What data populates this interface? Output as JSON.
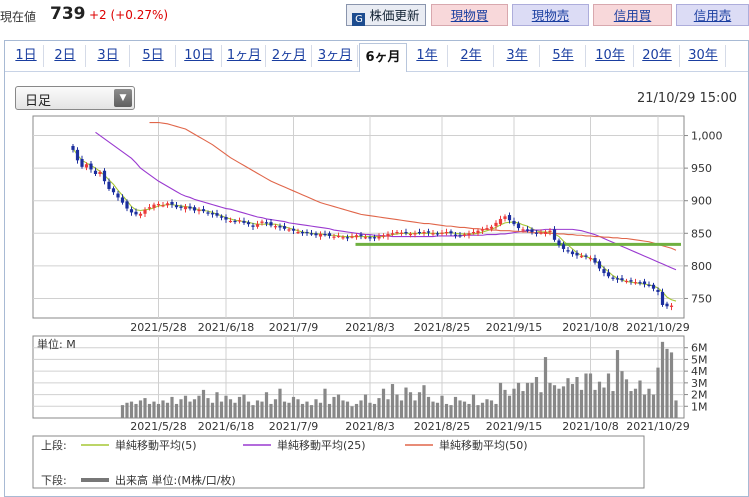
{
  "header": {
    "price_label": "現在値",
    "price": "739",
    "change": "+2 (+0.27%)",
    "refresh_label": "株価更新",
    "buy_cash_label": "現物買",
    "sell_cash_label": "現物売",
    "buy_margin_label": "信用買",
    "sell_margin_label": "信用売"
  },
  "tabs": [
    "1日",
    "2日",
    "3日",
    "5日",
    "10日",
    "1ヶ月",
    "2ヶ月",
    "3ヶ月",
    "6ヶ月",
    "1年",
    "2年",
    "3年",
    "5年",
    "10年",
    "20年",
    "30年"
  ],
  "active_tab": "6ヶ月",
  "period_select": {
    "value": "日足"
  },
  "datetime": "21/10/29 15:00",
  "colors": {
    "up": "#ec3b3b",
    "down": "#1c2f9e",
    "ma5": "#a6c735",
    "ma25": "#9a3ad0",
    "ma50": "#e0664a",
    "support": "#6fb040",
    "volume": "#888888"
  },
  "chart_data": [
    {
      "type": "candlestick",
      "title": "",
      "ylabel": "",
      "ylim": [
        720,
        1030
      ],
      "y_ticks": [
        "1,000",
        "950",
        "900",
        "850",
        "800",
        "750"
      ],
      "y_tick_values": [
        1000,
        950,
        900,
        850,
        800,
        750
      ],
      "x_ticks": [
        "2021/5/28",
        "2021/6/18",
        "2021/7/9",
        "2021/8/3",
        "2021/8/25",
        "2021/9/15",
        "2021/10/8",
        "2021/10/29"
      ],
      "x_tick_index": [
        19,
        34,
        49,
        66,
        82,
        98,
        115,
        130
      ],
      "support_line": {
        "value": 833,
        "from_index": 65,
        "to_index": 135
      },
      "close": [
        978,
        962,
        952,
        956,
        948,
        941,
        944,
        930,
        918,
        913,
        905,
        897,
        888,
        882,
        879,
        880,
        886,
        890,
        894,
        895,
        893,
        896,
        894,
        890,
        889,
        891,
        888,
        885,
        886,
        884,
        881,
        879,
        877,
        874,
        871,
        869,
        868,
        870,
        866,
        864,
        860,
        864,
        868,
        866,
        862,
        861,
        859,
        857,
        856,
        854,
        852,
        850,
        851,
        849,
        847,
        849,
        848,
        846,
        845,
        846,
        844,
        843,
        845,
        847,
        846,
        844,
        842,
        843,
        845,
        847,
        849,
        850,
        852,
        851,
        850,
        849,
        850,
        851,
        852,
        851,
        850,
        849,
        851,
        852,
        850,
        847,
        846,
        848,
        850,
        852,
        854,
        856,
        858,
        860,
        866,
        872,
        876,
        870,
        864,
        858,
        856,
        854,
        852,
        850,
        851,
        852,
        854,
        840,
        832,
        826,
        822,
        818,
        816,
        815,
        814,
        812,
        805,
        796,
        789,
        784,
        781,
        779,
        778,
        777,
        776,
        775,
        774,
        772,
        770,
        765,
        760,
        740,
        738,
        739
      ],
      "series": [
        {
          "name": "単純移動平均(5)",
          "values": [
            980,
            970,
            962,
            958,
            954,
            950,
            945,
            939,
            932,
            925,
            916,
            908,
            900,
            891,
            886,
            885,
            886,
            887,
            889,
            892,
            893,
            894,
            894,
            893,
            892,
            891,
            890,
            888,
            886,
            885,
            884,
            882,
            879,
            877,
            874,
            872,
            870,
            869,
            868,
            867,
            865,
            864,
            864,
            864,
            864,
            864,
            862,
            860,
            858,
            856,
            854,
            852,
            851,
            850,
            849,
            849,
            848,
            847,
            847,
            846,
            845,
            845,
            845,
            845,
            845,
            845,
            845,
            845,
            845,
            845,
            846,
            848,
            849,
            850,
            850,
            850,
            850,
            850,
            850,
            850,
            850,
            850,
            850,
            851,
            851,
            850,
            849,
            849,
            849,
            849,
            850,
            852,
            854,
            856,
            859,
            863,
            866,
            867,
            867,
            866,
            863,
            861,
            857,
            854,
            852,
            852,
            851,
            849,
            845,
            838,
            832,
            826,
            820,
            816,
            814,
            812,
            808,
            803,
            797,
            791,
            785,
            781,
            778,
            776,
            775,
            774,
            773,
            772,
            771,
            769,
            766,
            760,
            752,
            748,
            746
          ]
        },
        {
          "name": "単純移動平均(25)",
          "values": [
            1005,
            1000,
            995,
            990,
            985,
            980,
            975,
            970,
            965,
            958,
            950,
            945,
            940,
            935,
            930,
            926,
            922,
            918,
            914,
            910,
            907,
            905,
            902,
            900,
            898,
            896,
            894,
            892,
            890,
            888,
            887,
            885,
            883,
            881,
            879,
            877,
            875,
            874,
            872,
            871,
            870,
            869,
            868,
            866,
            865,
            864,
            863,
            862,
            861,
            860,
            859,
            858,
            857,
            855,
            854,
            853,
            852,
            851,
            850,
            849,
            848,
            848,
            847,
            847,
            846,
            846,
            845,
            845,
            845,
            845,
            845,
            845,
            845,
            845,
            845,
            845,
            846,
            846,
            846,
            846,
            846,
            846,
            847,
            847,
            847,
            847,
            847,
            848,
            848,
            848,
            849,
            849,
            850,
            851,
            852,
            853,
            854,
            855,
            855,
            855,
            856,
            856,
            856,
            856,
            856,
            856,
            856,
            855,
            854,
            852,
            850,
            848,
            845,
            842,
            839,
            836,
            833,
            830,
            827,
            824,
            821,
            818,
            815,
            812,
            809,
            806,
            803,
            800,
            797,
            794
          ]
        },
        {
          "name": "単純移動平均(50)",
          "values": [
            1020,
            1020,
            1020,
            1019,
            1018,
            1016,
            1014,
            1012,
            1010,
            1006,
            1002,
            998,
            994,
            990,
            986,
            981,
            976,
            971,
            966,
            962,
            958,
            954,
            950,
            946,
            942,
            938,
            934,
            930,
            927,
            924,
            921,
            918,
            915,
            912,
            909,
            906,
            903,
            900,
            897,
            895,
            893,
            891,
            889,
            887,
            885,
            883,
            881,
            879,
            878,
            877,
            876,
            875,
            874,
            873,
            872,
            871,
            870,
            869,
            868,
            867,
            866,
            865,
            865,
            864,
            863,
            862,
            861,
            861,
            860,
            859,
            859,
            858,
            857,
            857,
            856,
            856,
            855,
            855,
            854,
            854,
            854,
            853,
            853,
            852,
            852,
            851,
            851,
            851,
            850,
            850,
            850,
            849,
            849,
            848,
            848,
            847,
            847,
            846,
            846,
            845,
            845,
            844,
            844,
            843,
            843,
            842,
            842,
            841,
            840,
            839,
            838,
            837,
            835,
            833,
            831,
            829,
            827,
            824
          ]
        }
      ]
    },
    {
      "type": "bar",
      "title": "",
      "unit_label": "単位: M",
      "y_ticks": [
        "6M",
        "5M",
        "4M",
        "3M",
        "2M",
        "1M"
      ],
      "y_tick_values": [
        6,
        5,
        4,
        3,
        2,
        1
      ],
      "ylim": [
        0,
        7
      ],
      "values": [
        1.1,
        1.3,
        1.4,
        1.2,
        1.5,
        1.7,
        1.2,
        1.4,
        1.2,
        1.5,
        1.3,
        1.8,
        1.2,
        1.6,
        1.9,
        1.4,
        1.6,
        1.9,
        2.4,
        1.7,
        1.3,
        2.2,
        1.4,
        1.9,
        1.6,
        1.3,
        1.8,
        2.0,
        1.4,
        1.1,
        1.5,
        1.4,
        2.2,
        1.2,
        1.6,
        2.5,
        1.4,
        1.3,
        1.8,
        1.6,
        1.2,
        1.4,
        1.1,
        1.6,
        1.3,
        2.5,
        1.2,
        1.8,
        2.0,
        1.5,
        1.4,
        1.0,
        1.2,
        1.5,
        2.0,
        1.3,
        1.2,
        1.7,
        2.5,
        1.6,
        2.9,
        2.0,
        1.5,
        2.6,
        2.2,
        1.5,
        2.2,
        2.8,
        1.8,
        1.4,
        1.3,
        1.9,
        1.2,
        1.1,
        1.8,
        1.5,
        1.4,
        1.2,
        2.0,
        1.1,
        1.3,
        1.6,
        1.5,
        1.2,
        3.0,
        2.4,
        1.9,
        2.5,
        3.0,
        2.3,
        3.0,
        3.0,
        3.5,
        2.2,
        5.2,
        3.0,
        2.8,
        2.5,
        2.7,
        3.4,
        2.9,
        3.5,
        2.4,
        3.8,
        3.8,
        2.4,
        3.1,
        2.6,
        3.8,
        2.3,
        5.8,
        4.0,
        3.3,
        2.3,
        2.5,
        3.2,
        2.0,
        2.5,
        2.0,
        4.3,
        6.5,
        5.9,
        5.6,
        1.5
      ]
    }
  ],
  "legend": {
    "top_label": "上段:",
    "bottom_label": "下段:",
    "items": [
      {
        "label": "単純移動平均(5)",
        "color": "#a6c735"
      },
      {
        "label": "単純移動平均(25)",
        "color": "#9a3ad0"
      },
      {
        "label": "単純移動平均(50)",
        "color": "#e0664a"
      }
    ],
    "volume_label": "出来高 単位:(M株/口/枚)"
  }
}
